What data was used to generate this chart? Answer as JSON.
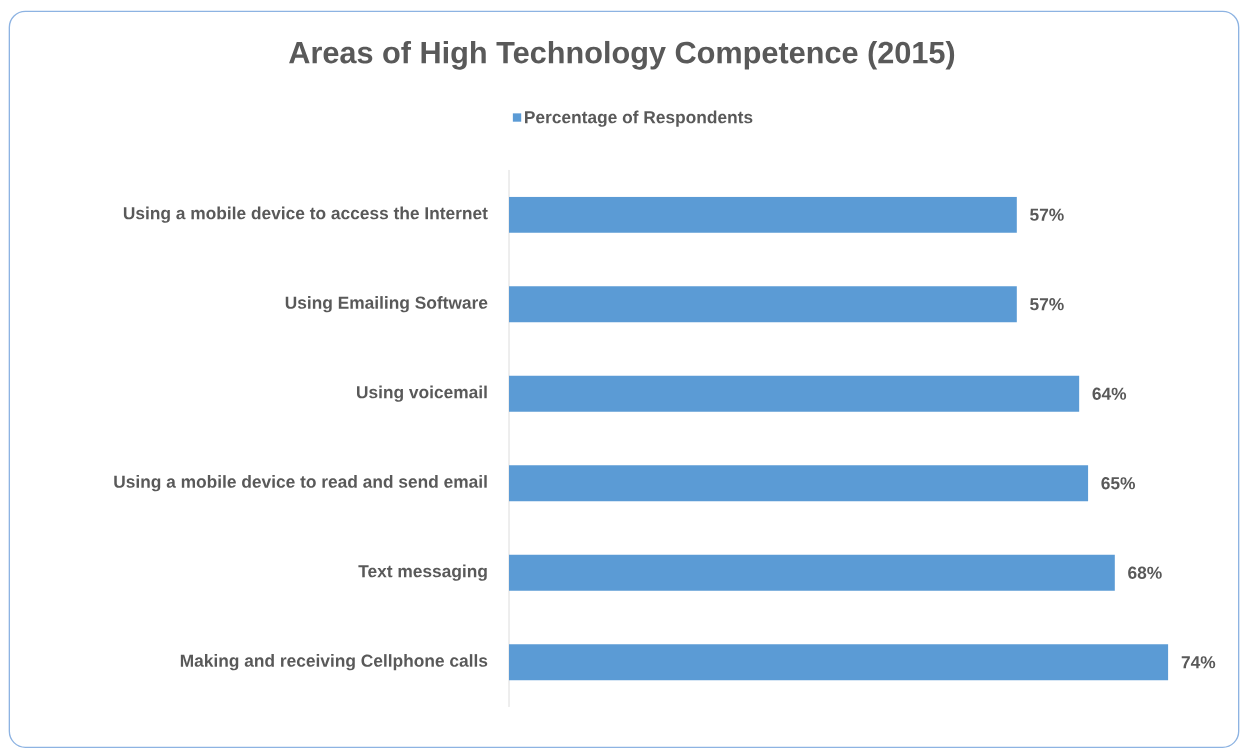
{
  "chart_data": {
    "type": "bar",
    "orientation": "horizontal",
    "title": "Areas of High Technology Competence (2015)",
    "categories": [
      "Using a mobile device to access the Internet",
      "Using Emailing Software",
      "Using voicemail",
      "Using a mobile device to read and send email",
      "Text messaging",
      "Making and receiving Cellphone calls"
    ],
    "series": [
      {
        "name": "Percentage of Respondents",
        "color": "#5b9bd5",
        "values": [
          57,
          57,
          64,
          65,
          68,
          74
        ],
        "value_labels": [
          "57%",
          "57%",
          "64%",
          "65%",
          "68%",
          "74%"
        ]
      }
    ],
    "legend": "top"
  }
}
